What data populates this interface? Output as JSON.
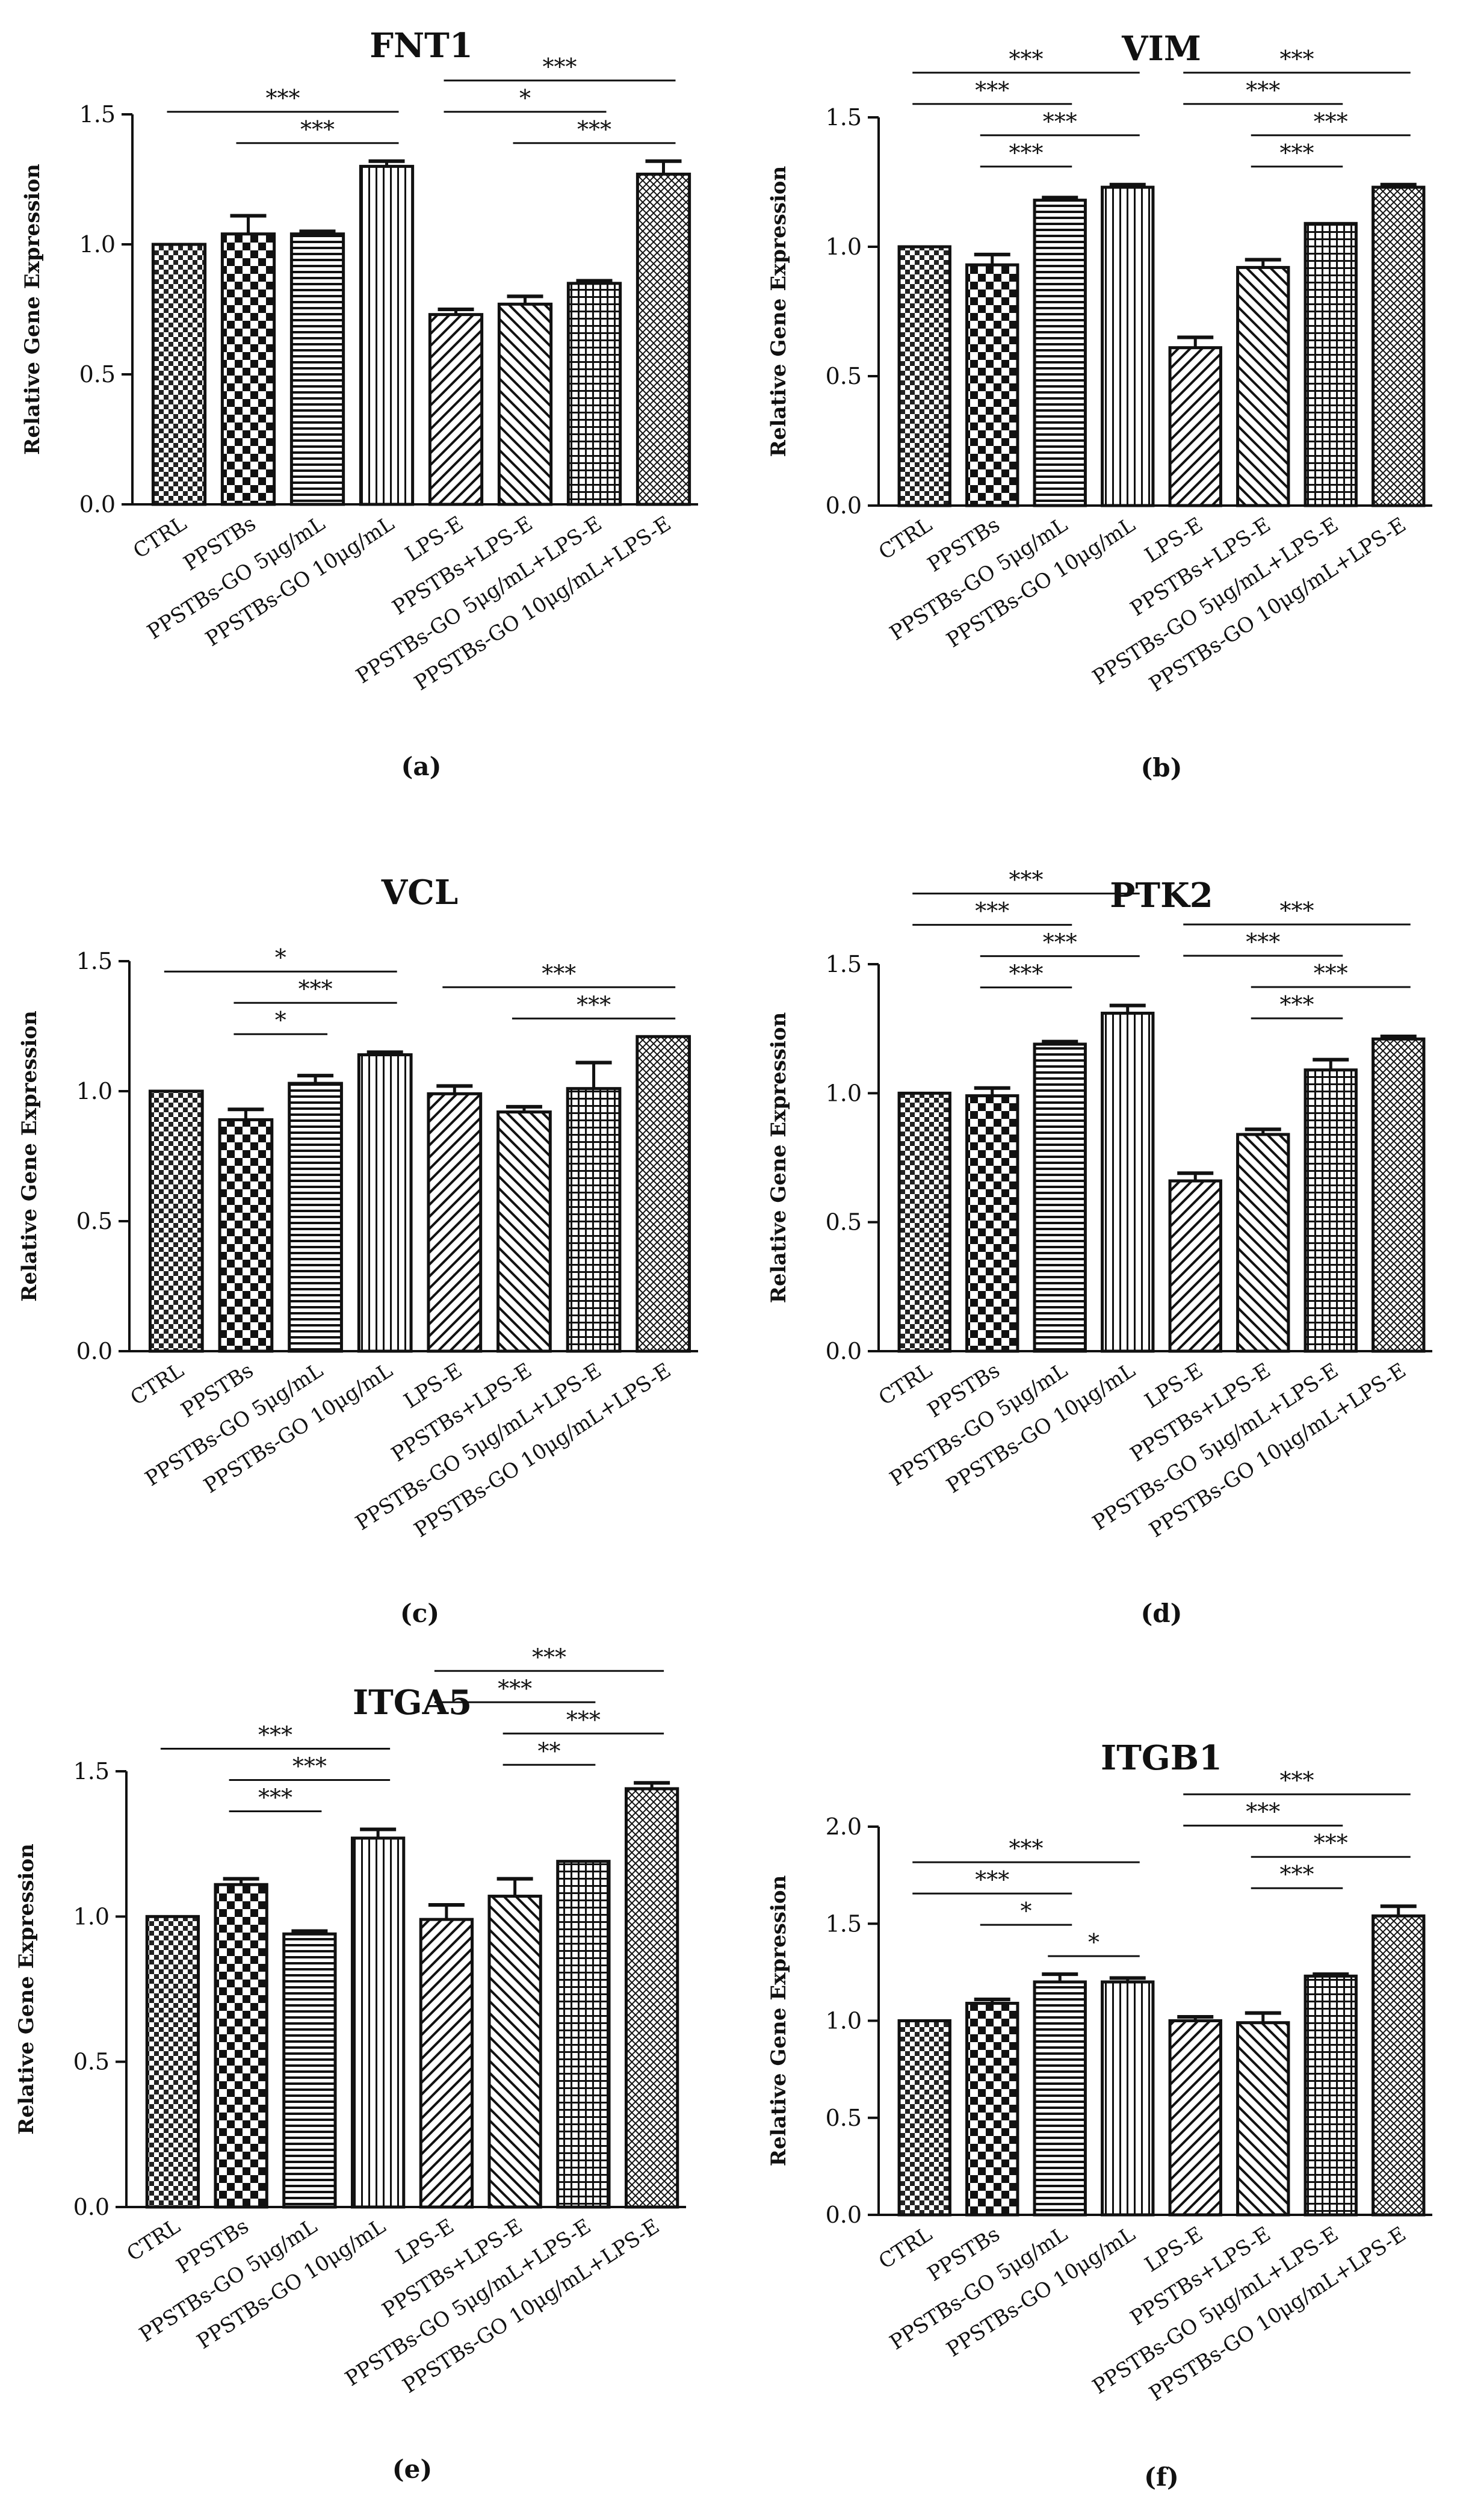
{
  "figure": {
    "categories": [
      "CTRL",
      "PPSTBs",
      "PPSTBs-GO 5μg/mL",
      "PPSTBs-GO 10μg/mL",
      "LPS-E",
      "PPSTBs+LPS-E",
      "PPSTBs-GO 5μg/mL+LPS-E",
      "PPSTBs-GO 10μg/mL+LPS-E"
    ],
    "patterns": [
      "checker-light",
      "checker-dark",
      "hlines",
      "vlines",
      "diag-fwd",
      "diag-back",
      "grid",
      "crosshatch"
    ]
  },
  "chart_data": [
    {
      "type": "bar",
      "panel_label": "(a)",
      "title": "FNT1",
      "ylabel": "Relative Gene Expression",
      "xlabel": "",
      "ylim": [
        0,
        1.5
      ],
      "yticks": [
        "0.0",
        "0.5",
        "1.0",
        "1.5"
      ],
      "categories": [
        "CTRL",
        "PPSTBs",
        "PPSTBs-GO 5μg/mL",
        "PPSTBs-GO 10μg/mL",
        "LPS-E",
        "PPSTBs+LPS-E",
        "PPSTBs-GO 5μg/mL+LPS-E",
        "PPSTBs-GO 10μg/mL+LPS-E"
      ],
      "values": [
        1.0,
        1.04,
        1.04,
        1.3,
        0.73,
        0.77,
        0.85,
        1.27
      ],
      "errors": [
        0.0,
        0.07,
        0.01,
        0.02,
        0.02,
        0.03,
        0.01,
        0.05
      ],
      "significance": [
        {
          "from": 0,
          "to": 3,
          "label": "***"
        },
        {
          "from": 1,
          "to": 3,
          "label": "***"
        },
        {
          "from": 4,
          "to": 7,
          "label": "***"
        },
        {
          "from": 5,
          "to": 7,
          "label": "***"
        },
        {
          "from": 4,
          "to": 6,
          "label": "*"
        }
      ]
    },
    {
      "type": "bar",
      "panel_label": "(b)",
      "title": "VIM",
      "ylabel": "Relative Gene Expression",
      "xlabel": "",
      "ylim": [
        0,
        1.5
      ],
      "yticks": [
        "0.0",
        "0.5",
        "1.0",
        "1.5"
      ],
      "categories": [
        "CTRL",
        "PPSTBs",
        "PPSTBs-GO 5μg/mL",
        "PPSTBs-GO 10μg/mL",
        "LPS-E",
        "PPSTBs+LPS-E",
        "PPSTBs-GO 5μg/mL+LPS-E",
        "PPSTBs-GO 10μg/mL+LPS-E"
      ],
      "values": [
        1.0,
        0.93,
        1.18,
        1.23,
        0.61,
        0.92,
        1.09,
        1.23
      ],
      "errors": [
        0.0,
        0.04,
        0.01,
        0.01,
        0.04,
        0.03,
        0.0,
        0.01
      ],
      "significance": [
        {
          "from": 0,
          "to": 3,
          "label": "***"
        },
        {
          "from": 1,
          "to": 3,
          "label": "***"
        },
        {
          "from": 0,
          "to": 2,
          "label": "***"
        },
        {
          "from": 1,
          "to": 2,
          "label": "***"
        },
        {
          "from": 4,
          "to": 7,
          "label": "***"
        },
        {
          "from": 5,
          "to": 7,
          "label": "***"
        },
        {
          "from": 4,
          "to": 6,
          "label": "***"
        },
        {
          "from": 5,
          "to": 6,
          "label": "***"
        }
      ]
    },
    {
      "type": "bar",
      "panel_label": "(c)",
      "title": "VCL",
      "ylabel": "Relative Gene Expression",
      "xlabel": "",
      "ylim": [
        0,
        1.5
      ],
      "yticks": [
        "0.0",
        "0.5",
        "1.0",
        "1.5"
      ],
      "categories": [
        "CTRL",
        "PPSTBs",
        "PPSTBs-GO 5μg/mL",
        "PPSTBs-GO 10μg/mL",
        "LPS-E",
        "PPSTBs+LPS-E",
        "PPSTBs-GO 5μg/mL+LPS-E",
        "PPSTBs-GO 10μg/mL+LPS-E"
      ],
      "values": [
        1.0,
        0.89,
        1.03,
        1.14,
        0.99,
        0.92,
        1.01,
        1.21
      ],
      "errors": [
        0.0,
        0.04,
        0.03,
        0.01,
        0.03,
        0.02,
        0.1,
        0.0
      ],
      "significance": [
        {
          "from": 0,
          "to": 3,
          "label": "*"
        },
        {
          "from": 1,
          "to": 3,
          "label": "***"
        },
        {
          "from": 1,
          "to": 2,
          "label": "*"
        },
        {
          "from": 4,
          "to": 7,
          "label": "***"
        },
        {
          "from": 5,
          "to": 7,
          "label": "***"
        }
      ]
    },
    {
      "type": "bar",
      "panel_label": "(d)",
      "title": "PTK2",
      "ylabel": "Relative Gene Expression",
      "xlabel": "",
      "ylim": [
        0,
        1.5
      ],
      "yticks": [
        "0.0",
        "0.5",
        "1.0",
        "1.5"
      ],
      "categories": [
        "CTRL",
        "PPSTBs",
        "PPSTBs-GO 5μg/mL",
        "PPSTBs-GO 10μg/mL",
        "LPS-E",
        "PPSTBs+LPS-E",
        "PPSTBs-GO 5μg/mL+LPS-E",
        "PPSTBs-GO 10μg/mL+LPS-E"
      ],
      "values": [
        1.0,
        0.99,
        1.19,
        1.31,
        0.66,
        0.84,
        1.09,
        1.21
      ],
      "errors": [
        0.0,
        0.03,
        0.01,
        0.03,
        0.03,
        0.02,
        0.04,
        0.01
      ],
      "significance": [
        {
          "from": 0,
          "to": 3,
          "label": "***"
        },
        {
          "from": 1,
          "to": 3,
          "label": "***"
        },
        {
          "from": 0,
          "to": 2,
          "label": "***"
        },
        {
          "from": 1,
          "to": 2,
          "label": "***"
        },
        {
          "from": 4,
          "to": 7,
          "label": "***"
        },
        {
          "from": 5,
          "to": 7,
          "label": "***"
        },
        {
          "from": 4,
          "to": 6,
          "label": "***"
        },
        {
          "from": 5,
          "to": 6,
          "label": "***"
        }
      ]
    },
    {
      "type": "bar",
      "panel_label": "(e)",
      "title": "ITGA5",
      "ylabel": "Relative Gene Expression",
      "xlabel": "",
      "ylim": [
        0,
        1.5
      ],
      "yticks": [
        "0.0",
        "0.5",
        "1.0",
        "1.5"
      ],
      "categories": [
        "CTRL",
        "PPSTBs",
        "PPSTBs-GO 5μg/mL",
        "PPSTBs-GO 10μg/mL",
        "LPS-E",
        "PPSTBs+LPS-E",
        "PPSTBs-GO 5μg/mL+LPS-E",
        "PPSTBs-GO 10μg/mL+LPS-E"
      ],
      "values": [
        1.0,
        1.11,
        0.94,
        1.27,
        0.99,
        1.07,
        1.19,
        1.44
      ],
      "errors": [
        0.0,
        0.02,
        0.01,
        0.03,
        0.05,
        0.06,
        0.0,
        0.02
      ],
      "significance": [
        {
          "from": 0,
          "to": 3,
          "label": "***"
        },
        {
          "from": 1,
          "to": 3,
          "label": "***"
        },
        {
          "from": 1,
          "to": 2,
          "label": "***"
        },
        {
          "from": 4,
          "to": 7,
          "label": "***"
        },
        {
          "from": 5,
          "to": 7,
          "label": "***"
        },
        {
          "from": 4,
          "to": 6,
          "label": "***"
        },
        {
          "from": 5,
          "to": 6,
          "label": "**"
        }
      ]
    },
    {
      "type": "bar",
      "panel_label": "(f)",
      "title": "ITGB1",
      "ylabel": "Relative Gene Expression",
      "xlabel": "",
      "ylim": [
        0,
        2.0
      ],
      "yticks": [
        "0.0",
        "0.5",
        "1.0",
        "1.5",
        "2.0"
      ],
      "categories": [
        "CTRL",
        "PPSTBs",
        "PPSTBs-GO 5μg/mL",
        "PPSTBs-GO 10μg/mL",
        "LPS-E",
        "PPSTBs+LPS-E",
        "PPSTBs-GO 5μg/mL+LPS-E",
        "PPSTBs-GO 10μg/mL+LPS-E"
      ],
      "values": [
        1.0,
        1.09,
        1.2,
        1.2,
        1.0,
        0.99,
        1.23,
        1.54
      ],
      "errors": [
        0.0,
        0.02,
        0.04,
        0.02,
        0.02,
        0.05,
        0.01,
        0.05
      ],
      "significance": [
        {
          "from": 0,
          "to": 3,
          "label": "***"
        },
        {
          "from": 0,
          "to": 2,
          "label": "***"
        },
        {
          "from": 2,
          "to": 3,
          "label": "*"
        },
        {
          "from": 1,
          "to": 2,
          "label": "*"
        },
        {
          "from": 4,
          "to": 7,
          "label": "***"
        },
        {
          "from": 5,
          "to": 7,
          "label": "***"
        },
        {
          "from": 4,
          "to": 6,
          "label": "***"
        },
        {
          "from": 5,
          "to": 6,
          "label": "***"
        }
      ]
    }
  ]
}
